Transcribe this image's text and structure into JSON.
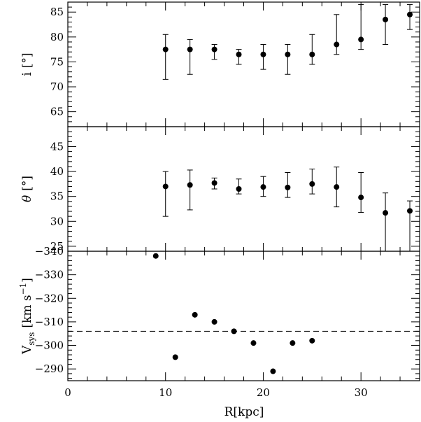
{
  "chart_data": [
    {
      "type": "scatter",
      "panel": "inclination",
      "ylabel": "i [°]",
      "ylabel_main": "i",
      "ylabel_unit": "[°]",
      "xlim": [
        0,
        36
      ],
      "ylim": [
        62,
        87
      ],
      "yticks": [
        65,
        70,
        75,
        80,
        85
      ],
      "error_bars": true,
      "series": [
        {
          "points": [
            {
              "x": 10.0,
              "y": 77.5,
              "lo": 71.5,
              "hi": 80.5
            },
            {
              "x": 12.5,
              "y": 77.5,
              "lo": 72.5,
              "hi": 79.5
            },
            {
              "x": 15.0,
              "y": 77.5,
              "lo": 75.5,
              "hi": 78.5
            },
            {
              "x": 17.5,
              "y": 76.5,
              "lo": 74.5,
              "hi": 77.5
            },
            {
              "x": 20.0,
              "y": 76.5,
              "lo": 73.5,
              "hi": 78.5
            },
            {
              "x": 22.5,
              "y": 76.5,
              "lo": 72.5,
              "hi": 78.5
            },
            {
              "x": 25.0,
              "y": 76.5,
              "lo": 74.5,
              "hi": 80.5
            },
            {
              "x": 27.5,
              "y": 78.5,
              "lo": 76.5,
              "hi": 84.5
            },
            {
              "x": 30.0,
              "y": 79.5,
              "lo": 77.5,
              "hi": 86.5
            },
            {
              "x": 32.5,
              "y": 83.5,
              "lo": 78.5,
              "hi": 86.5
            },
            {
              "x": 35.0,
              "y": 84.5,
              "lo": 81.5,
              "hi": 86.5
            }
          ]
        }
      ]
    },
    {
      "type": "scatter",
      "panel": "position-angle",
      "ylabel": "θ [°]",
      "ylabel_main": "θ",
      "ylabel_unit": "[°]",
      "xlim": [
        0,
        36
      ],
      "ylim": [
        24,
        49
      ],
      "yticks": [
        25,
        30,
        35,
        40,
        45
      ],
      "error_bars": true,
      "series": [
        {
          "points": [
            {
              "x": 10.0,
              "y": 37.0,
              "lo": 31.0,
              "hi": 40.0
            },
            {
              "x": 12.5,
              "y": 37.3,
              "lo": 32.3,
              "hi": 40.3
            },
            {
              "x": 15.0,
              "y": 37.7,
              "lo": 36.5,
              "hi": 38.7
            },
            {
              "x": 17.5,
              "y": 36.5,
              "lo": 35.5,
              "hi": 38.5
            },
            {
              "x": 20.0,
              "y": 36.9,
              "lo": 35.0,
              "hi": 39.0
            },
            {
              "x": 22.5,
              "y": 36.8,
              "lo": 34.8,
              "hi": 39.8
            },
            {
              "x": 25.0,
              "y": 37.5,
              "lo": 35.5,
              "hi": 40.5
            },
            {
              "x": 27.5,
              "y": 36.9,
              "lo": 32.9,
              "hi": 40.9
            },
            {
              "x": 30.0,
              "y": 34.8,
              "lo": 31.8,
              "hi": 39.8
            },
            {
              "x": 32.5,
              "y": 31.7,
              "lo": 24.0,
              "hi": 35.7
            },
            {
              "x": 35.0,
              "y": 32.1,
              "lo": 24.0,
              "hi": 34.1
            }
          ]
        }
      ]
    },
    {
      "type": "scatter",
      "panel": "systemic-velocity",
      "ylabel": "V_sys [km s^-1]",
      "ylabel_main": "V",
      "ylabel_sub": "sys",
      "ylabel_unit": "[km s",
      "ylabel_exp": "−1",
      "ylabel_close": "]",
      "xlabel": "R[kpc]",
      "xlim": [
        0,
        36
      ],
      "xticks": [
        0,
        10,
        20,
        30
      ],
      "ylim": [
        -285,
        -340
      ],
      "inverted": true,
      "yticks": [
        -290,
        -300,
        -310,
        -320,
        -330,
        -340
      ],
      "reference_line": {
        "y": -306,
        "style": "dashed"
      },
      "series": [
        {
          "points": [
            {
              "x": 9.0,
              "y": -338
            },
            {
              "x": 11.0,
              "y": -295
            },
            {
              "x": 13.0,
              "y": -313
            },
            {
              "x": 15.0,
              "y": -310
            },
            {
              "x": 17.0,
              "y": -306
            },
            {
              "x": 19.0,
              "y": -301
            },
            {
              "x": 21.0,
              "y": -289
            },
            {
              "x": 23.0,
              "y": -301
            },
            {
              "x": 25.0,
              "y": -302
            }
          ]
        }
      ]
    }
  ]
}
